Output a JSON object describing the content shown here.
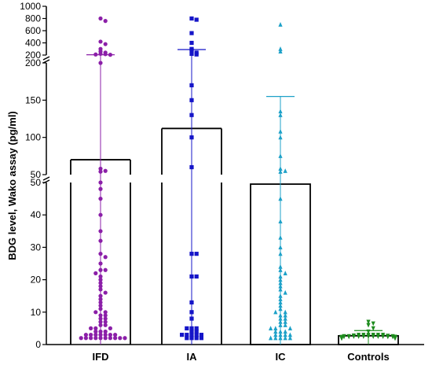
{
  "chart_data": {
    "type": "scatter",
    "title": "",
    "ylabel": "BDG level, Wako assay  (pg/ml)",
    "xlabel": "",
    "categories": [
      "IFD",
      "IA",
      "IC",
      "Controls"
    ],
    "y_axis_segments": [
      {
        "range": [
          0,
          50
        ],
        "ticks": [
          "0",
          "10",
          "20",
          "30",
          "40",
          "50"
        ]
      },
      {
        "range": [
          50,
          200
        ],
        "ticks": [
          "50",
          "100",
          "150",
          "200"
        ]
      },
      {
        "range": [
          200,
          1000
        ],
        "ticks": [
          "200",
          "400",
          "600",
          "800",
          "1000"
        ]
      }
    ],
    "series": [
      {
        "name": "IFD",
        "color": "#8B1FA8",
        "marker": "circle",
        "bar_value": 70,
        "error_upper": 205,
        "values": [
          800,
          760,
          420,
          380,
          300,
          260,
          240,
          220,
          215,
          210,
          205,
          200,
          58,
          55,
          54,
          50,
          48,
          45,
          40,
          35,
          32,
          28,
          27,
          25,
          23,
          23,
          22,
          21,
          20,
          19,
          18,
          17,
          16,
          15,
          14,
          13,
          12,
          11,
          10,
          10,
          9,
          9,
          8,
          8,
          7,
          7,
          6,
          6,
          5,
          5,
          5,
          4,
          4,
          4,
          3,
          3,
          3,
          3,
          3,
          3,
          3,
          2,
          2,
          2,
          2,
          2,
          2,
          2,
          2,
          2,
          2
        ]
      },
      {
        "name": "IA",
        "color": "#1515C8",
        "marker": "square",
        "bar_value": 112,
        "error_upper": 290,
        "values": [
          800,
          780,
          560,
          400,
          300,
          280,
          240,
          220,
          210,
          170,
          150,
          130,
          100,
          60,
          28,
          28,
          21,
          21,
          13,
          10,
          8,
          5,
          5,
          5,
          4,
          4,
          3,
          3,
          3,
          3,
          3,
          2,
          2,
          2,
          2
        ]
      },
      {
        "name": "IC",
        "color": "#1DA1C8",
        "marker": "triangle",
        "bar_value": 49.5,
        "error_upper": 155,
        "values": [
          700,
          300,
          260,
          135,
          130,
          108,
          100,
          75,
          58,
          55,
          54,
          45,
          38,
          33,
          30,
          28,
          24,
          23,
          22,
          21,
          20,
          19,
          18,
          17,
          16,
          15,
          14,
          13,
          12,
          11,
          10,
          10,
          9,
          9,
          8,
          8,
          7,
          7,
          6,
          6,
          5,
          5,
          5,
          4,
          4,
          4,
          3,
          3,
          3,
          3,
          2,
          2,
          2,
          2,
          2
        ]
      },
      {
        "name": "Controls",
        "color": "#1E8C1E",
        "marker": "triangle-down",
        "bar_value": 2.7,
        "error_upper": 4.3,
        "values": [
          7,
          6.5,
          6,
          5,
          4,
          3,
          3,
          3,
          3,
          3,
          3,
          2.8,
          2.7,
          2.6,
          2.6,
          2.6,
          2.5,
          2.5,
          2.5,
          2.5,
          2.5,
          2.5,
          2.5,
          2.4,
          2.4,
          2.4,
          2.4,
          2.4,
          2.3,
          2.3,
          2.3,
          2.3,
          2.3,
          2.2,
          2.2,
          2.2,
          2.2,
          2.2,
          2.1,
          2.1,
          2.1,
          2.1,
          2,
          2,
          2,
          2,
          2,
          2,
          2,
          2,
          2
        ]
      }
    ]
  }
}
